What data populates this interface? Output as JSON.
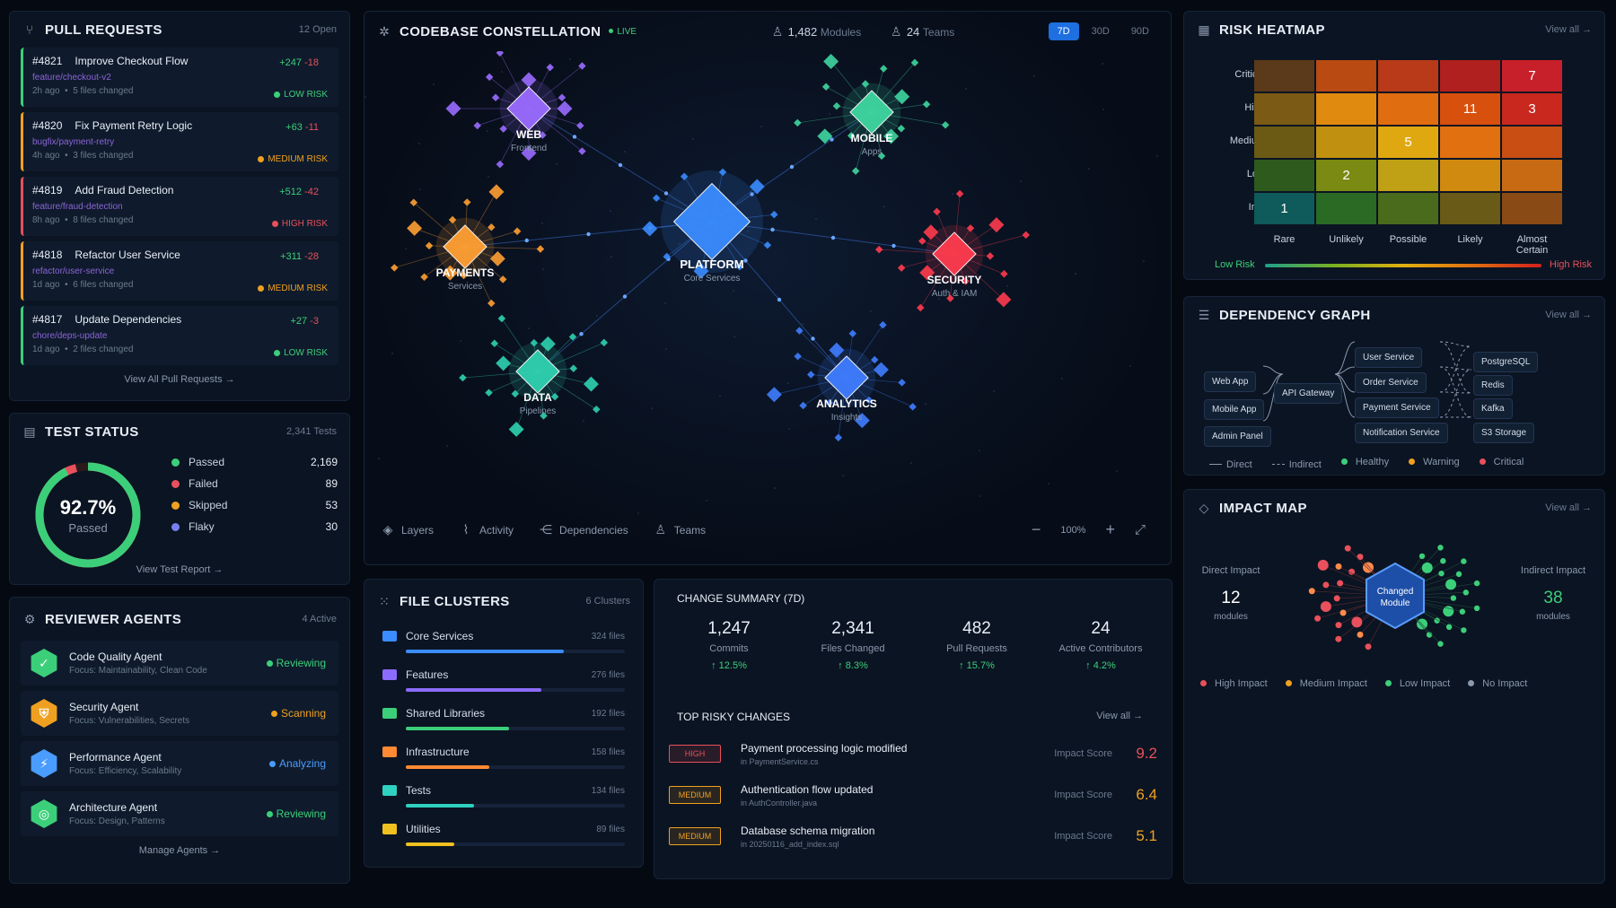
{
  "pull_requests": {
    "title": "PULL REQUESTS",
    "count": "12 Open",
    "view_all": "View All Pull Requests",
    "items": [
      {
        "num": "#4821",
        "title": "Improve Checkout Flow",
        "branch": "feature/checkout-v2",
        "when": "2h ago",
        "files": "5 files changed",
        "add": "+247",
        "del": "-18",
        "risk": "LOW RISK",
        "color": "#3ccf7a"
      },
      {
        "num": "#4820",
        "title": "Fix Payment Retry Logic",
        "branch": "bugfix/payment-retry",
        "when": "4h ago",
        "files": "3 files changed",
        "add": "+63",
        "del": "-11",
        "risk": "MEDIUM RISK",
        "color": "#f0a020"
      },
      {
        "num": "#4819",
        "title": "Add Fraud Detection",
        "branch": "feature/fraud-detection",
        "when": "8h ago",
        "files": "8 files changed",
        "add": "+512",
        "del": "-42",
        "risk": "HIGH RISK",
        "color": "#e8505b"
      },
      {
        "num": "#4818",
        "title": "Refactor User Service",
        "branch": "refactor/user-service",
        "when": "1d ago",
        "files": "6 files changed",
        "add": "+311",
        "del": "-28",
        "risk": "MEDIUM RISK",
        "color": "#f0a020"
      },
      {
        "num": "#4817",
        "title": "Update Dependencies",
        "branch": "chore/deps-update",
        "when": "1d ago",
        "files": "2 files changed",
        "add": "+27",
        "del": "-3",
        "risk": "LOW RISK",
        "color": "#3ccf7a"
      }
    ]
  },
  "test_status": {
    "title": "TEST STATUS",
    "count": "2,341 Tests",
    "percent": "92.7%",
    "percent_label": "Passed",
    "pass_fraction": 0.927,
    "view": "View Test Report",
    "rows": [
      {
        "label": "Passed",
        "value": "2,169",
        "color": "#3ccf7a"
      },
      {
        "label": "Failed",
        "value": "89",
        "color": "#e8505b"
      },
      {
        "label": "Skipped",
        "value": "53",
        "color": "#f0a020"
      },
      {
        "label": "Flaky",
        "value": "30",
        "color": "#7a7ff0"
      }
    ]
  },
  "agents": {
    "title": "REVIEWER AGENTS",
    "count": "4 Active",
    "manage": "Manage Agents",
    "items": [
      {
        "name": "Code Quality Agent",
        "focus": "Focus: Maintainability, Clean Code",
        "status": "Reviewing",
        "color": "#3ccf7a",
        "icon": "✓"
      },
      {
        "name": "Security Agent",
        "focus": "Focus: Vulnerabilities, Secrets",
        "status": "Scanning",
        "color": "#f0a020",
        "icon": "⛨"
      },
      {
        "name": "Performance Agent",
        "focus": "Focus: Efficiency, Scalability",
        "status": "Analyzing",
        "color": "#4a9cff",
        "icon": "⚡"
      },
      {
        "name": "Architecture Agent",
        "focus": "Focus: Design, Patterns",
        "status": "Reviewing",
        "color": "#3ccf7a",
        "icon": "◎"
      }
    ]
  },
  "constellation": {
    "title": "CODEBASE CONSTELLATION",
    "live": "LIVE",
    "modules": "1,482",
    "modules_label": "Modules",
    "teams": "24",
    "teams_label": "Teams",
    "ranges": [
      "7D",
      "30D",
      "90D"
    ],
    "active_range": "7D",
    "zoom": "100%",
    "tools": [
      "Layers",
      "Activity",
      "Dependencies",
      "Teams"
    ],
    "clusters": [
      {
        "name": "WEB",
        "sub": "Frontend",
        "color": "#9a6bff"
      },
      {
        "name": "MOBILE",
        "sub": "Apps",
        "color": "#3fd6a0"
      },
      {
        "name": "PAYMENTS",
        "sub": "Services",
        "color": "#ffa033"
      },
      {
        "name": "PLATFORM",
        "sub": "Core Services",
        "color": "#3a8cff"
      },
      {
        "name": "SECURITY",
        "sub": "Auth & IAM",
        "color": "#ff3b4e"
      },
      {
        "name": "DATA",
        "sub": "Pipelines",
        "color": "#2fd1b0"
      },
      {
        "name": "ANALYTICS",
        "sub": "Insights",
        "color": "#3f7dff"
      }
    ]
  },
  "file_clusters": {
    "title": "FILE CLUSTERS",
    "count": "6 Clusters",
    "items": [
      {
        "name": "Core Services",
        "files": "324 files",
        "fill": 0.72,
        "color": "#3a8cff"
      },
      {
        "name": "Features",
        "files": "276 files",
        "fill": 0.62,
        "color": "#8c6bff"
      },
      {
        "name": "Shared Libraries",
        "files": "192 files",
        "fill": 0.47,
        "color": "#3ccf7a"
      },
      {
        "name": "Infrastructure",
        "files": "158 files",
        "fill": 0.38,
        "color": "#ff8a33"
      },
      {
        "name": "Tests",
        "files": "134 files",
        "fill": 0.31,
        "color": "#2fd1c0"
      },
      {
        "name": "Utilities",
        "files": "89 files",
        "fill": 0.22,
        "color": "#f0c020"
      }
    ]
  },
  "change_summary": {
    "title": "CHANGE SUMMARY (7D)",
    "stats": [
      {
        "value": "1,247",
        "label": "Commits",
        "delta": "12.5%"
      },
      {
        "value": "2,341",
        "label": "Files Changed",
        "delta": "8.3%"
      },
      {
        "value": "482",
        "label": "Pull Requests",
        "delta": "15.7%"
      },
      {
        "value": "24",
        "label": "Active Contributors",
        "delta": "4.2%"
      }
    ],
    "risky_title": "TOP RISKY CHANGES",
    "view_all": "View all",
    "impact_label": "Impact Score",
    "risky": [
      {
        "level": "HIGH",
        "title": "Payment processing logic modified",
        "file": "in PaymentService.cs",
        "score": "9.2",
        "color": "#e8505b"
      },
      {
        "level": "MEDIUM",
        "title": "Authentication flow updated",
        "file": "in AuthController.java",
        "score": "6.4",
        "color": "#f0a020"
      },
      {
        "level": "MEDIUM",
        "title": "Database schema migration",
        "file": "in 20250116_add_index.sql",
        "score": "5.1",
        "color": "#f0a020"
      }
    ]
  },
  "risk_heatmap": {
    "title": "RISK HEATMAP",
    "view_all": "View all",
    "rows": [
      "Critical",
      "High",
      "Medium",
      "Low",
      "Info"
    ],
    "cols": [
      "Rare",
      "Unlikely",
      "Possible",
      "Likely",
      "Almost Certain"
    ],
    "colors": [
      [
        "#5a3a1a",
        "#b84a12",
        "#b83a18",
        "#b0201e",
        "#c8202a"
      ],
      [
        "#7a5a14",
        "#e08a10",
        "#e06d10",
        "#d8500e",
        "#c8281e"
      ],
      [
        "#6a5a14",
        "#c09010",
        "#e0a810",
        "#e07010",
        "#c84e14"
      ],
      [
        "#2e5a1e",
        "#7a8a12",
        "#c0a014",
        "#d08a10",
        "#c86a14"
      ],
      [
        "#0f5a5a",
        "#2a6a24",
        "#4a6a1c",
        "#6a5a18",
        "#8a4a16"
      ]
    ],
    "values": [
      [
        "",
        "",
        "",
        "",
        "7"
      ],
      [
        "",
        "",
        "",
        "11",
        "3"
      ],
      [
        "",
        "",
        "5",
        "",
        ""
      ],
      [
        "",
        "2",
        "",
        "",
        ""
      ],
      [
        "1",
        "",
        "",
        "",
        ""
      ]
    ],
    "low": "Low Risk",
    "high": "High Risk"
  },
  "dependency_graph": {
    "title": "DEPENDENCY GRAPH",
    "view_all": "View all",
    "clients": [
      "Web App",
      "Mobile App",
      "Admin Panel"
    ],
    "gateway": "API Gateway",
    "services": [
      "User Service",
      "Order Service",
      "Payment Service",
      "Notification Service"
    ],
    "stores": [
      "PostgreSQL",
      "Redis",
      "Kafka",
      "S3 Storage"
    ],
    "legend": [
      "Direct",
      "Indirect",
      "Healthy",
      "Warning",
      "Critical"
    ]
  },
  "impact_map": {
    "title": "IMPACT MAP",
    "view_all": "View all",
    "direct_label": "Direct Impact",
    "direct_value": "12",
    "direct_unit": "modules",
    "indirect_label": "Indirect Impact",
    "indirect_value": "38",
    "indirect_unit": "modules",
    "center": "Changed Module",
    "legend": [
      "High Impact",
      "Medium Impact",
      "Low Impact",
      "No Impact"
    ]
  }
}
